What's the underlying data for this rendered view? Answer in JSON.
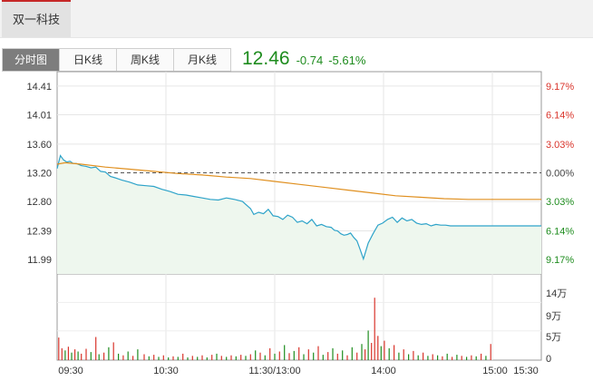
{
  "stock_tab": {
    "label": "双一科技"
  },
  "period_tabs": [
    {
      "label": "分时图",
      "active": true
    },
    {
      "label": "日K线",
      "active": false
    },
    {
      "label": "周K线",
      "active": false
    },
    {
      "label": "月K线",
      "active": false
    }
  ],
  "quote": {
    "price": "12.46",
    "change": "-0.74",
    "change_pct": "-5.61%",
    "color": "#1e8c1e"
  },
  "colors": {
    "up": "#d9342b",
    "down": "#1e8c1e",
    "price_line": "#2ea3c9",
    "avg_line": "#e09020",
    "area_fill": "#eef7ee",
    "neutral": "#444444"
  },
  "chart_data": [
    {
      "type": "line",
      "title": "",
      "prev_close": 13.2,
      "ylim": [
        11.79,
        14.61
      ],
      "y_ticks": [
        "14.41",
        "14.01",
        "13.60",
        "13.20",
        "12.80",
        "12.39",
        "11.99"
      ],
      "pct_ticks": [
        {
          "label": "9.17%",
          "color": "#d9342b"
        },
        {
          "label": "6.14%",
          "color": "#d9342b"
        },
        {
          "label": "3.03%",
          "color": "#d9342b"
        },
        {
          "label": "0.00%",
          "color": "#444444"
        },
        {
          "label": "3.03%",
          "color": "#1e8c1e"
        },
        {
          "label": "6.14%",
          "color": "#1e8c1e"
        },
        {
          "label": "9.17%",
          "color": "#1e8c1e"
        }
      ],
      "x_ticks": [
        "09:30",
        "10:30",
        "11:30/13:00",
        "14:00",
        "15:00",
        "15:30"
      ],
      "session_minutes": 270,
      "series": [
        {
          "name": "price",
          "x": [
            0,
            2,
            4,
            6,
            8,
            10,
            12,
            15,
            18,
            21,
            24,
            27,
            30,
            33,
            36,
            40,
            45,
            50,
            55,
            60,
            65,
            70,
            75,
            80,
            85,
            90,
            95,
            100,
            105,
            110,
            115,
            120,
            122,
            125,
            128,
            131,
            134,
            137,
            140,
            143,
            146,
            149,
            152,
            155,
            158,
            161,
            164,
            167,
            170,
            172,
            174,
            176,
            178,
            180,
            182,
            184,
            186,
            188,
            190,
            193,
            196,
            199,
            202,
            205,
            208,
            211,
            214,
            217,
            220,
            223,
            226,
            229,
            232,
            235,
            238,
            241,
            244,
            247,
            250,
            253,
            256,
            259,
            262,
            265,
            268,
            270
          ],
          "y": [
            13.26,
            13.44,
            13.38,
            13.35,
            13.36,
            13.33,
            13.33,
            13.3,
            13.29,
            13.27,
            13.28,
            13.22,
            13.21,
            13.15,
            13.13,
            13.1,
            13.07,
            13.03,
            13.02,
            13.01,
            12.97,
            12.94,
            12.9,
            12.89,
            12.87,
            12.85,
            12.83,
            12.82,
            12.85,
            12.83,
            12.8,
            12.7,
            12.62,
            12.65,
            12.63,
            12.69,
            12.6,
            12.59,
            12.55,
            12.61,
            12.58,
            12.51,
            12.53,
            12.49,
            12.55,
            12.46,
            12.48,
            12.45,
            12.44,
            12.4,
            12.39,
            12.35,
            12.33,
            12.34,
            12.36,
            12.3,
            12.25,
            12.13,
            12.0,
            12.22,
            12.35,
            12.47,
            12.5,
            12.55,
            12.58,
            12.51,
            12.57,
            12.53,
            12.55,
            12.5,
            12.48,
            12.49,
            12.46,
            12.48,
            12.47,
            12.47,
            12.46,
            12.46,
            12.46,
            12.46,
            12.46,
            12.46,
            12.46,
            12.46,
            12.46,
            12.46
          ]
        },
        {
          "name": "average",
          "x": [
            0,
            5,
            15,
            30,
            45,
            60,
            75,
            90,
            105,
            120,
            135,
            150,
            165,
            180,
            195,
            210,
            225,
            240,
            255,
            270
          ],
          "y": [
            13.32,
            13.34,
            13.32,
            13.28,
            13.25,
            13.22,
            13.19,
            13.17,
            13.14,
            13.12,
            13.08,
            13.04,
            13.0,
            12.96,
            12.92,
            12.88,
            12.86,
            12.84,
            12.83,
            12.83
          ]
        }
      ]
    },
    {
      "type": "bar",
      "title": "",
      "unit": "万",
      "ylim": [
        0,
        150000
      ],
      "y_ticks": [
        "14万",
        "9万",
        "5万",
        "0"
      ],
      "bars": [
        {
          "x": 1,
          "v": 42000,
          "up": true
        },
        {
          "x": 3,
          "v": 22000,
          "up": true
        },
        {
          "x": 5,
          "v": 18000,
          "up": false
        },
        {
          "x": 7,
          "v": 25000,
          "up": true
        },
        {
          "x": 9,
          "v": 14000,
          "up": false
        },
        {
          "x": 11,
          "v": 20000,
          "up": true
        },
        {
          "x": 13,
          "v": 16000,
          "up": false
        },
        {
          "x": 15,
          "v": 12000,
          "up": true
        },
        {
          "x": 18,
          "v": 21000,
          "up": true
        },
        {
          "x": 21,
          "v": 15000,
          "up": false
        },
        {
          "x": 24,
          "v": 43000,
          "up": true
        },
        {
          "x": 26,
          "v": 11000,
          "up": false
        },
        {
          "x": 29,
          "v": 14000,
          "up": true
        },
        {
          "x": 32,
          "v": 24000,
          "up": false
        },
        {
          "x": 35,
          "v": 33000,
          "up": true
        },
        {
          "x": 38,
          "v": 12000,
          "up": false
        },
        {
          "x": 41,
          "v": 9000,
          "up": true
        },
        {
          "x": 44,
          "v": 16000,
          "up": false
        },
        {
          "x": 47,
          "v": 8000,
          "up": true
        },
        {
          "x": 50,
          "v": 20000,
          "up": false
        },
        {
          "x": 54,
          "v": 11000,
          "up": true
        },
        {
          "x": 57,
          "v": 7000,
          "up": false
        },
        {
          "x": 60,
          "v": 10000,
          "up": true
        },
        {
          "x": 63,
          "v": 6000,
          "up": false
        },
        {
          "x": 66,
          "v": 9000,
          "up": true
        },
        {
          "x": 69,
          "v": 5000,
          "up": false
        },
        {
          "x": 72,
          "v": 7000,
          "up": true
        },
        {
          "x": 75,
          "v": 6000,
          "up": false
        },
        {
          "x": 78,
          "v": 12000,
          "up": true
        },
        {
          "x": 81,
          "v": 5000,
          "up": false
        },
        {
          "x": 84,
          "v": 8000,
          "up": true
        },
        {
          "x": 87,
          "v": 6000,
          "up": false
        },
        {
          "x": 90,
          "v": 9000,
          "up": true
        },
        {
          "x": 93,
          "v": 5000,
          "up": false
        },
        {
          "x": 96,
          "v": 10000,
          "up": true
        },
        {
          "x": 99,
          "v": 12000,
          "up": false
        },
        {
          "x": 102,
          "v": 8000,
          "up": true
        },
        {
          "x": 105,
          "v": 6000,
          "up": false
        },
        {
          "x": 108,
          "v": 9000,
          "up": true
        },
        {
          "x": 111,
          "v": 7000,
          "up": false
        },
        {
          "x": 114,
          "v": 10000,
          "up": true
        },
        {
          "x": 117,
          "v": 8000,
          "up": false
        },
        {
          "x": 120,
          "v": 11000,
          "up": true
        },
        {
          "x": 123,
          "v": 18000,
          "up": false
        },
        {
          "x": 126,
          "v": 14000,
          "up": true
        },
        {
          "x": 129,
          "v": 9000,
          "up": false
        },
        {
          "x": 132,
          "v": 22000,
          "up": true
        },
        {
          "x": 135,
          "v": 12000,
          "up": false
        },
        {
          "x": 138,
          "v": 16000,
          "up": true
        },
        {
          "x": 141,
          "v": 28000,
          "up": false
        },
        {
          "x": 144,
          "v": 13000,
          "up": true
        },
        {
          "x": 147,
          "v": 17000,
          "up": false
        },
        {
          "x": 150,
          "v": 24000,
          "up": true
        },
        {
          "x": 153,
          "v": 11000,
          "up": false
        },
        {
          "x": 156,
          "v": 20000,
          "up": true
        },
        {
          "x": 159,
          "v": 14000,
          "up": false
        },
        {
          "x": 162,
          "v": 26000,
          "up": true
        },
        {
          "x": 165,
          "v": 10000,
          "up": false
        },
        {
          "x": 168,
          "v": 15000,
          "up": true
        },
        {
          "x": 171,
          "v": 22000,
          "up": false
        },
        {
          "x": 174,
          "v": 12000,
          "up": true
        },
        {
          "x": 177,
          "v": 18000,
          "up": false
        },
        {
          "x": 180,
          "v": 9000,
          "up": true
        },
        {
          "x": 183,
          "v": 24000,
          "up": false
        },
        {
          "x": 186,
          "v": 14000,
          "up": true
        },
        {
          "x": 189,
          "v": 30000,
          "up": false
        },
        {
          "x": 191,
          "v": 20000,
          "up": true
        },
        {
          "x": 193,
          "v": 55000,
          "up": false
        },
        {
          "x": 195,
          "v": 32000,
          "up": true
        },
        {
          "x": 197,
          "v": 116000,
          "up": true
        },
        {
          "x": 199,
          "v": 45000,
          "up": true
        },
        {
          "x": 201,
          "v": 26000,
          "up": false
        },
        {
          "x": 203,
          "v": 36000,
          "up": true
        },
        {
          "x": 206,
          "v": 22000,
          "up": false
        },
        {
          "x": 209,
          "v": 28000,
          "up": true
        },
        {
          "x": 212,
          "v": 14000,
          "up": false
        },
        {
          "x": 215,
          "v": 20000,
          "up": true
        },
        {
          "x": 218,
          "v": 11000,
          "up": false
        },
        {
          "x": 221,
          "v": 17000,
          "up": true
        },
        {
          "x": 224,
          "v": 9000,
          "up": false
        },
        {
          "x": 227,
          "v": 14000,
          "up": true
        },
        {
          "x": 230,
          "v": 8000,
          "up": false
        },
        {
          "x": 233,
          "v": 11000,
          "up": true
        },
        {
          "x": 236,
          "v": 9000,
          "up": false
        },
        {
          "x": 239,
          "v": 7000,
          "up": true
        },
        {
          "x": 242,
          "v": 12000,
          "up": false
        },
        {
          "x": 245,
          "v": 6000,
          "up": true
        },
        {
          "x": 248,
          "v": 10000,
          "up": false
        },
        {
          "x": 251,
          "v": 8000,
          "up": true
        },
        {
          "x": 254,
          "v": 6000,
          "up": false
        },
        {
          "x": 257,
          "v": 9000,
          "up": true
        },
        {
          "x": 260,
          "v": 7000,
          "up": false
        },
        {
          "x": 263,
          "v": 12000,
          "up": true
        },
        {
          "x": 266,
          "v": 8000,
          "up": false
        },
        {
          "x": 269,
          "v": 30000,
          "up": true
        }
      ]
    }
  ]
}
